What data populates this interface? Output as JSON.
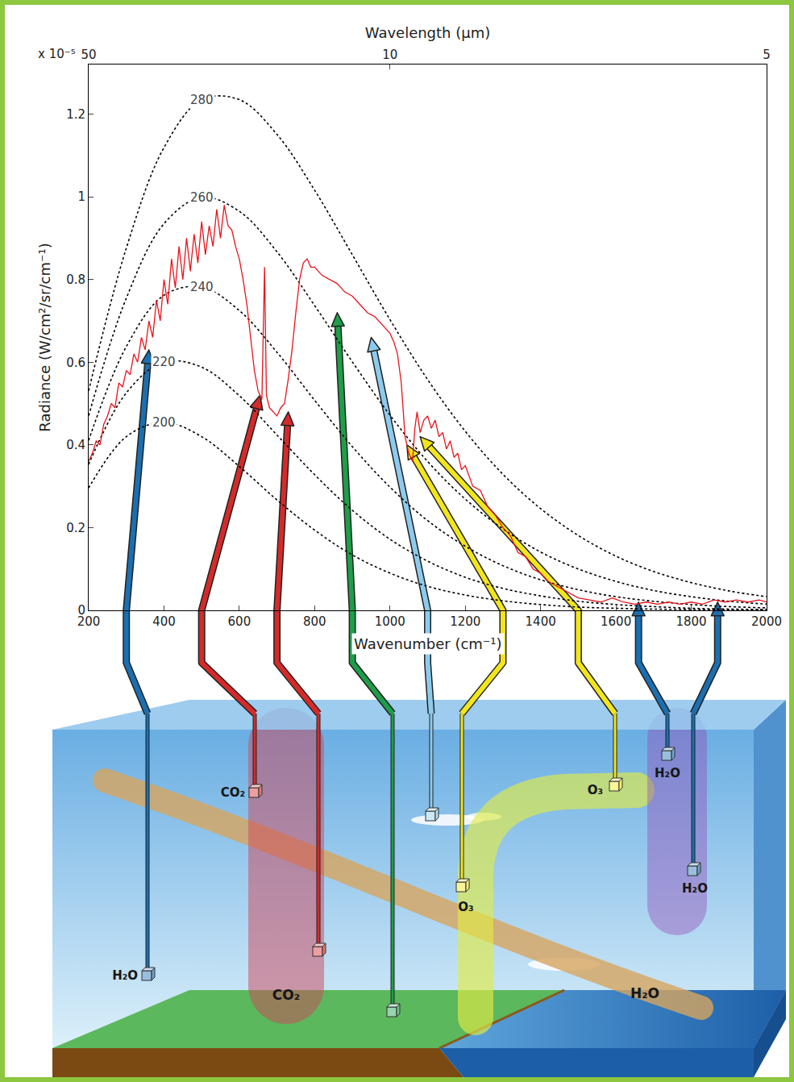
{
  "chart_data": {
    "type": "line",
    "x_label": "Wavenumber (cm⁻¹)",
    "y_label": "Radiance (W/cm²/sr/cm⁻¹)",
    "y_multiplier": "x 10⁻⁵",
    "x2_label": "Wavelength (μm)",
    "xlim": [
      200,
      2000
    ],
    "xticks": [
      200,
      400,
      600,
      800,
      1000,
      1200,
      1400,
      1600,
      1800,
      2000
    ],
    "x2ticks": [
      {
        "value": 200,
        "label": "50"
      },
      {
        "value": 1000,
        "label": "10"
      },
      {
        "value": 2000,
        "label": "5"
      }
    ],
    "ylim": [
      0,
      1.32
    ],
    "yticks": [
      0,
      0.2,
      0.4,
      0.6,
      0.8,
      1,
      1.2
    ],
    "grid": false,
    "series": [
      {
        "name": "280",
        "color": "#000000",
        "line_style": "dotted",
        "x": [
          200,
          300,
          400,
          500,
          600,
          700,
          800,
          900,
          1000,
          1100,
          1200,
          1300,
          1400,
          1500,
          1600,
          1700,
          1800,
          1900,
          2000
        ],
        "values": [
          0.531,
          0.876,
          1.119,
          1.235,
          1.235,
          1.151,
          1.016,
          0.86,
          0.703,
          0.558,
          0.433,
          0.329,
          0.246,
          0.181,
          0.131,
          0.094,
          0.067,
          0.047,
          0.033
        ]
      },
      {
        "name": "260",
        "color": "#000000",
        "line_style": "dotted",
        "x": [
          200,
          300,
          400,
          500,
          600,
          700,
          800,
          900,
          1000,
          1100,
          1200,
          1300,
          1400,
          1500,
          1600,
          1700,
          1800,
          1900,
          2000
        ],
        "values": [
          0.471,
          0.755,
          0.935,
          0.999,
          0.965,
          0.867,
          0.737,
          0.601,
          0.472,
          0.36,
          0.269,
          0.197,
          0.141,
          0.1,
          0.07,
          0.048,
          0.033,
          0.022,
          0.015
        ]
      },
      {
        "name": "240",
        "color": "#000000",
        "line_style": "dotted",
        "x": [
          200,
          300,
          400,
          500,
          600,
          700,
          800,
          900,
          1000,
          1100,
          1200,
          1300,
          1400,
          1500,
          1600,
          1700,
          1800,
          1900,
          2000
        ],
        "values": [
          0.411,
          0.638,
          0.762,
          0.782,
          0.725,
          0.624,
          0.508,
          0.396,
          0.298,
          0.217,
          0.155,
          0.108,
          0.074,
          0.05,
          0.033,
          0.022,
          0.014,
          0.009,
          0.006
        ]
      },
      {
        "name": "220",
        "color": "#000000",
        "line_style": "dotted",
        "x": [
          200,
          300,
          400,
          500,
          600,
          700,
          800,
          900,
          1000,
          1100,
          1200,
          1300,
          1400,
          1500,
          1600,
          1700,
          1800,
          1900,
          2000
        ],
        "values": [
          0.353,
          0.526,
          0.601,
          0.588,
          0.519,
          0.424,
          0.328,
          0.242,
          0.172,
          0.119,
          0.08,
          0.053,
          0.035,
          0.022,
          0.014,
          0.009,
          0.005,
          0.003,
          0.002
        ]
      },
      {
        "name": "200",
        "color": "#000000",
        "line_style": "dotted",
        "x": [
          200,
          300,
          400,
          500,
          600,
          700,
          800,
          900,
          1000,
          1100,
          1200,
          1300,
          1400,
          1500,
          1600,
          1700,
          1800,
          1900,
          2000
        ],
        "values": [
          0.296,
          0.42,
          0.455,
          0.42,
          0.348,
          0.267,
          0.194,
          0.134,
          0.09,
          0.058,
          0.037,
          0.023,
          0.014,
          0.008,
          0.005,
          0.003,
          0.002,
          0.001,
          0.001
        ]
      },
      {
        "color": "#e8141c",
        "line_style": "solid",
        "x": [
          200,
          210,
          220,
          230,
          240,
          250,
          260,
          270,
          280,
          290,
          300,
          310,
          320,
          330,
          340,
          350,
          360,
          370,
          380,
          390,
          400,
          410,
          420,
          430,
          440,
          450,
          460,
          470,
          480,
          490,
          500,
          510,
          520,
          530,
          540,
          550,
          560,
          570,
          580,
          590,
          600,
          610,
          620,
          630,
          640,
          650,
          660,
          667,
          672,
          680,
          690,
          700,
          710,
          720,
          730,
          740,
          750,
          760,
          770,
          780,
          790,
          800,
          820,
          840,
          860,
          880,
          900,
          920,
          940,
          960,
          980,
          1000,
          1010,
          1020,
          1030,
          1040,
          1050,
          1060,
          1066,
          1072,
          1080,
          1090,
          1100,
          1110,
          1120,
          1130,
          1140,
          1150,
          1160,
          1170,
          1180,
          1190,
          1200,
          1220,
          1240,
          1260,
          1280,
          1300,
          1320,
          1340,
          1360,
          1380,
          1400,
          1420,
          1440,
          1460,
          1480,
          1500,
          1530,
          1560,
          1590,
          1620,
          1650,
          1680,
          1710,
          1740,
          1770,
          1800,
          1830,
          1860,
          1890,
          1920,
          1950,
          1980,
          2000
        ],
        "values": [
          0.36,
          0.38,
          0.41,
          0.4,
          0.45,
          0.47,
          0.5,
          0.49,
          0.55,
          0.54,
          0.58,
          0.57,
          0.62,
          0.6,
          0.66,
          0.63,
          0.7,
          0.66,
          0.75,
          0.7,
          0.8,
          0.74,
          0.85,
          0.78,
          0.88,
          0.8,
          0.9,
          0.82,
          0.91,
          0.84,
          0.94,
          0.86,
          0.93,
          0.88,
          0.97,
          0.9,
          0.98,
          0.93,
          0.92,
          0.88,
          0.85,
          0.8,
          0.74,
          0.66,
          0.58,
          0.53,
          0.51,
          0.83,
          0.52,
          0.49,
          0.48,
          0.47,
          0.49,
          0.5,
          0.56,
          0.63,
          0.72,
          0.8,
          0.84,
          0.85,
          0.83,
          0.83,
          0.81,
          0.8,
          0.79,
          0.77,
          0.76,
          0.74,
          0.72,
          0.71,
          0.69,
          0.67,
          0.65,
          0.62,
          0.55,
          0.42,
          0.38,
          0.36,
          0.44,
          0.48,
          0.43,
          0.46,
          0.47,
          0.44,
          0.46,
          0.42,
          0.43,
          0.39,
          0.41,
          0.37,
          0.38,
          0.34,
          0.35,
          0.3,
          0.29,
          0.25,
          0.23,
          0.2,
          0.18,
          0.14,
          0.13,
          0.1,
          0.09,
          0.07,
          0.06,
          0.05,
          0.04,
          0.03,
          0.025,
          0.02,
          0.03,
          0.02,
          0.015,
          0.02,
          0.015,
          0.02,
          0.015,
          0.02,
          0.015,
          0.025,
          0.02,
          0.025,
          0.02,
          0.025,
          0.02
        ]
      }
    ]
  },
  "diagram": {
    "band_labels": [
      "CO₂",
      "H₂O"
    ],
    "sources": [
      {
        "label": "H₂O",
        "color": "#1b6fb0",
        "target": [
          360,
          0.63
        ]
      },
      {
        "label": "CO₂",
        "color": "#d42a2a",
        "target": [
          655,
          0.52
        ]
      },
      {
        "color": "#d42a2a",
        "target": [
          730,
          0.48
        ]
      },
      {
        "color": "#1e9e48",
        "target": [
          860,
          0.72
        ]
      },
      {
        "color": "#8ccbee",
        "target": [
          950,
          0.66
        ]
      },
      {
        "label": "O₃",
        "color": "#f2e61b",
        "target": [
          1045,
          0.4
        ]
      },
      {
        "label": "O₃",
        "color": "#f2e61b",
        "target": [
          1080,
          0.42
        ]
      },
      {
        "label": "H₂O",
        "color": "#1b6fb0",
        "target": [
          1660,
          0.02
        ]
      },
      {
        "label": "H₂O",
        "color": "#1b6fb0",
        "target": [
          1870,
          0.02
        ]
      }
    ]
  }
}
